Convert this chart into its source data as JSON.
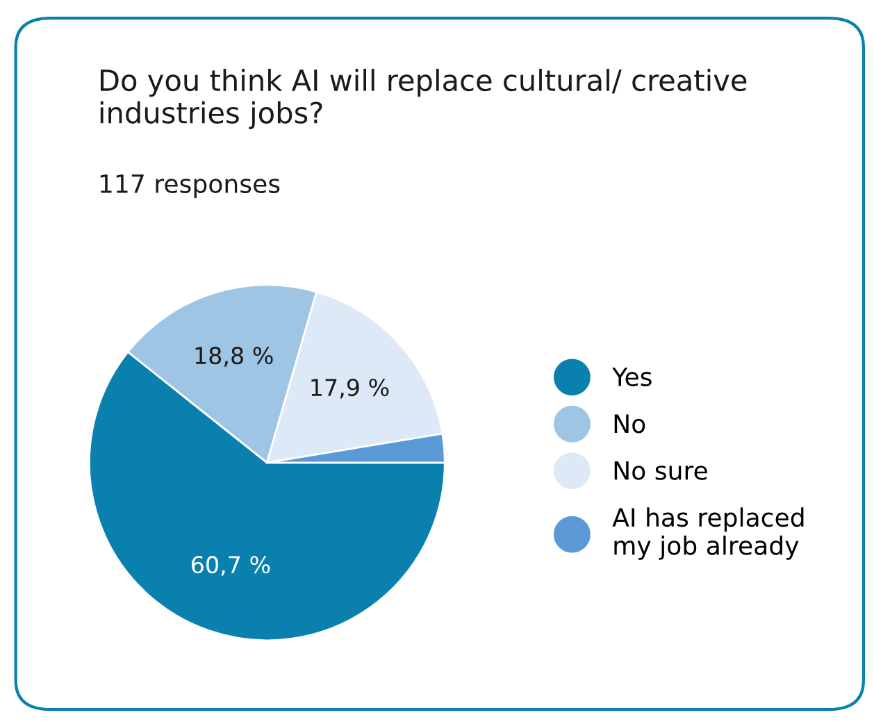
{
  "chart_data": {
    "type": "pie",
    "title": "Do you think AI will replace cultural/ creative industries jobs?",
    "subtitle": "117 responses",
    "categories": [
      "Yes",
      "No",
      "No sure",
      "AI has replaced\nmy job already"
    ],
    "values": [
      60.7,
      18.8,
      17.9,
      2.6
    ],
    "colors": [
      "#0a80ae",
      "#9fc5e5",
      "#dde9f6",
      "#5b9ad6"
    ],
    "value_labels": [
      "60,7 %",
      "18,8 %",
      "17,9 %",
      null
    ],
    "legend": "right"
  }
}
